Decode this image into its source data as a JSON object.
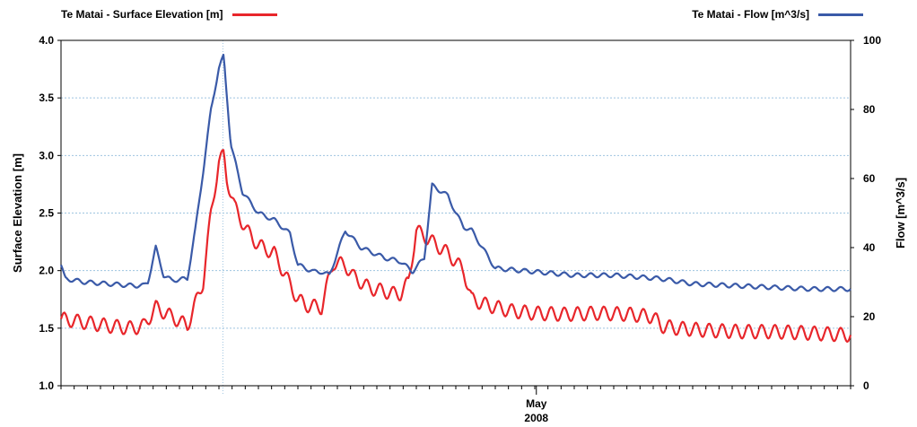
{
  "legend": {
    "left_series_label": "Te Matai - Surface Elevation [m]",
    "right_series_label": "Te Matai - Flow [m^3/s]"
  },
  "chart_data": {
    "type": "line",
    "xlabel_month": "May",
    "xlabel_year": "2008",
    "y_left": {
      "label": "Surface Elevation [m]",
      "range": [
        1.0,
        4.0
      ],
      "ticks": [
        "1.0",
        "1.5",
        "2.0",
        "2.5",
        "3.0",
        "3.5",
        "4.0"
      ]
    },
    "y_right": {
      "label": "Flow [m^3/s]",
      "range": [
        0,
        100
      ],
      "ticks": [
        "0",
        "20",
        "40",
        "60",
        "80",
        "100"
      ]
    },
    "grid": true,
    "x_domain": [
      0,
      1
    ],
    "x_label_position": 0.602,
    "vertical_marker": 0.205,
    "colors": {
      "elevation": "#e8262b",
      "flow": "#3a5aa8",
      "grid": "#9ec4e0",
      "axis": "#000000"
    },
    "series": [
      {
        "name": "Te Matai - Surface Elevation [m]",
        "axis": "left",
        "color": "#e8262b",
        "x": [
          0,
          0.03,
          0.06,
          0.09,
          0.105,
          0.12,
          0.14,
          0.16,
          0.18,
          0.19,
          0.2,
          0.206,
          0.21,
          0.22,
          0.235,
          0.25,
          0.27,
          0.29,
          0.3,
          0.31,
          0.33,
          0.34,
          0.345,
          0.36,
          0.37,
          0.39,
          0.41,
          0.42,
          0.43,
          0.44,
          0.45,
          0.46,
          0.47,
          0.49,
          0.51,
          0.52,
          0.54,
          0.57,
          0.6,
          0.64,
          0.68,
          0.72,
          0.75,
          0.76,
          0.78,
          0.82,
          0.86,
          0.9,
          0.94,
          0.97,
          1.0
        ],
        "y": [
          1.58,
          1.55,
          1.52,
          1.5,
          1.52,
          1.68,
          1.6,
          1.52,
          1.9,
          2.5,
          2.95,
          3.0,
          2.8,
          2.55,
          2.35,
          2.22,
          2.15,
          1.88,
          1.75,
          1.7,
          1.68,
          1.95,
          2.07,
          2.05,
          1.95,
          1.85,
          1.82,
          1.8,
          1.8,
          1.9,
          2.35,
          2.3,
          2.25,
          2.15,
          2.0,
          1.75,
          1.7,
          1.65,
          1.63,
          1.62,
          1.63,
          1.62,
          1.6,
          1.52,
          1.5,
          1.48,
          1.47,
          1.47,
          1.46,
          1.45,
          1.44
        ],
        "oscillation": 0.06
      },
      {
        "name": "Te Matai - Flow [m^3/s]",
        "axis": "right",
        "color": "#3a5aa8",
        "x": [
          0,
          0.005,
          0.03,
          0.06,
          0.09,
          0.105,
          0.11,
          0.12,
          0.13,
          0.14,
          0.16,
          0.17,
          0.18,
          0.19,
          0.2,
          0.206,
          0.215,
          0.23,
          0.25,
          0.27,
          0.29,
          0.3,
          0.31,
          0.32,
          0.33,
          0.34,
          0.36,
          0.38,
          0.41,
          0.43,
          0.44,
          0.445,
          0.46,
          0.47,
          0.49,
          0.5,
          0.51,
          0.52,
          0.55,
          0.6,
          0.65,
          0.7,
          0.76,
          0.8,
          0.85,
          0.9,
          0.95,
          1.0
        ],
        "y": [
          35,
          31,
          30,
          29.5,
          29,
          29,
          30,
          40,
          32,
          30.5,
          31,
          45,
          62,
          80,
          92,
          95.5,
          70,
          56,
          50,
          48,
          44,
          35,
          34,
          33,
          33,
          32,
          45,
          40,
          37,
          36,
          34,
          33,
          37,
          58,
          55,
          50,
          46,
          45,
          34,
          33,
          32,
          32,
          31,
          29.5,
          29,
          28.5,
          28,
          28
        ],
        "oscillation": 0.6
      }
    ]
  }
}
